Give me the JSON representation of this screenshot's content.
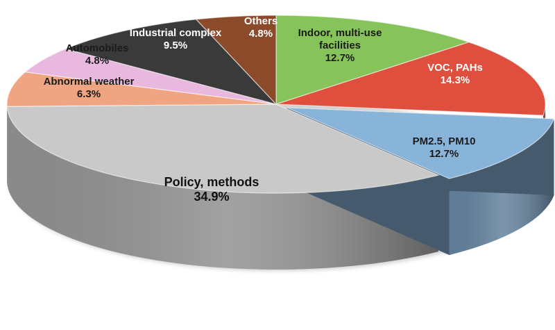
{
  "chart_data": {
    "type": "pie",
    "style": "3d-exploded",
    "slices": [
      {
        "name": "Indoor, multi-use facilities",
        "lines": [
          "Indoor, multi-use",
          "facilities",
          "12.7%"
        ],
        "value": 12.7,
        "color": "#86c35a",
        "text_color": "#1a1a1a"
      },
      {
        "name": "VOC, PAHs",
        "lines": [
          "VOC, PAHs",
          "14.3%"
        ],
        "value": 14.3,
        "color": "#e04e3d",
        "text_color": "#ffffff"
      },
      {
        "name": "PM2.5, PM10",
        "lines": [
          "PM2.5, PM10",
          "12.7%"
        ],
        "value": 12.7,
        "color": "#89b4da",
        "text_color": "#1a1a1a",
        "explode": true
      },
      {
        "name": "Policy, methods",
        "lines": [
          "Policy, methods",
          "34.9%"
        ],
        "value": 34.9,
        "color": "#c9c9c9",
        "text_color": "#111111"
      },
      {
        "name": "Abnormal weather",
        "lines": [
          "Abnormal weather",
          "6.3%"
        ],
        "value": 6.3,
        "color": "#f0a582",
        "text_color": "#1a1a1a"
      },
      {
        "name": "Automobiles",
        "lines": [
          "Automobiles",
          "4.8%"
        ],
        "value": 4.8,
        "color": "#e8b8df",
        "text_color": "#1a1a1a"
      },
      {
        "name": "Industrial complex",
        "lines": [
          "Industrial complex",
          "9.5%"
        ],
        "value": 9.5,
        "color": "#3a3a3a",
        "text_color": "#ffffff"
      },
      {
        "name": "Others",
        "lines": [
          "Others",
          "4.8%"
        ],
        "value": 4.8,
        "color": "#8b4a2a",
        "text_color": "#ffffff"
      }
    ]
  }
}
